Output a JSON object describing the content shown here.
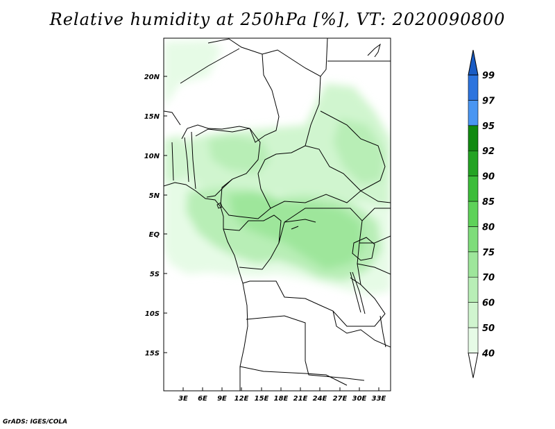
{
  "title": "Relative humidity at 250hPa [%], VT: 2020090800",
  "credit": "GrADS: IGES/COLA",
  "map": {
    "lat_labels": [
      "20N",
      "15N",
      "10N",
      "5N",
      "EQ",
      "5S",
      "10S",
      "15S"
    ],
    "lon_labels": [
      "3E",
      "6E",
      "9E",
      "12E",
      "15E",
      "18E",
      "21E",
      "24E",
      "27E",
      "30E",
      "33E"
    ]
  },
  "colorbar": {
    "labels": [
      "40",
      "50",
      "60",
      "70",
      "75",
      "80",
      "85",
      "90",
      "92",
      "95",
      "97",
      "99"
    ],
    "colors": [
      "#ffffff",
      "#e6fbe6",
      "#d0f5cf",
      "#b8eeb6",
      "#9ee69b",
      "#7edd7a",
      "#5ed259",
      "#3cbd3a",
      "#23a323",
      "#118a11",
      "#4a96f2",
      "#2d74de",
      "#1a5cc4"
    ]
  },
  "colors": {
    "land_fill": "#ffffff",
    "border": "#000000"
  }
}
